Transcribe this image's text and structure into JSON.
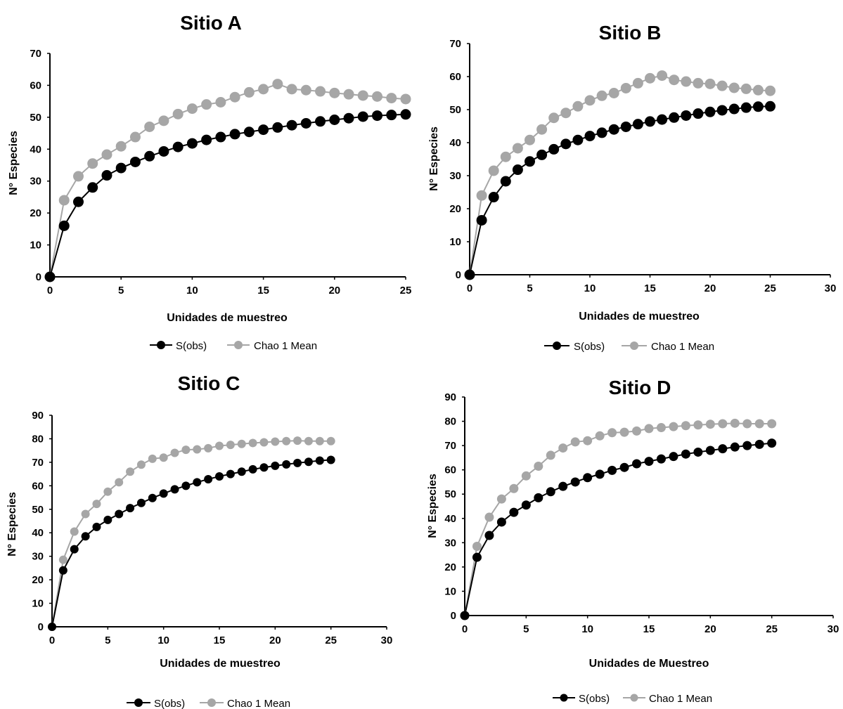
{
  "chart_data": [
    {
      "type": "line",
      "title": "Sitio A",
      "xlabel": "Unidades de muestreo",
      "ylabel": "N° Especies",
      "xlim": [
        0,
        25
      ],
      "ylim": [
        0,
        70
      ],
      "xticks": [
        0,
        5,
        10,
        15,
        20,
        25
      ],
      "yticks": [
        0,
        10,
        20,
        30,
        40,
        50,
        60,
        70
      ],
      "x": [
        0,
        1,
        2,
        3,
        4,
        5,
        6,
        7,
        8,
        9,
        10,
        11,
        12,
        13,
        14,
        15,
        16,
        17,
        18,
        19,
        20,
        21,
        22,
        23,
        24,
        25
      ],
      "series": [
        {
          "name": "S(obs)",
          "color": "#000000",
          "values": [
            0,
            16,
            23.5,
            28,
            31.8,
            34.1,
            36,
            37.8,
            39.3,
            40.7,
            41.8,
            42.9,
            43.8,
            44.7,
            45.4,
            46.1,
            46.8,
            47.5,
            48.1,
            48.7,
            49.2,
            49.7,
            50.2,
            50.5,
            50.7,
            50.9
          ]
        },
        {
          "name": "Chao 1 Mean",
          "color": "#a6a6a6",
          "values": [
            0,
            24,
            31.5,
            35.5,
            38.3,
            40.9,
            43.8,
            47,
            48.9,
            51,
            52.7,
            54,
            54.7,
            56.3,
            57.8,
            58.8,
            60.4,
            58.8,
            58.5,
            58.1,
            57.6,
            57.2,
            56.8,
            56.5,
            56,
            55.7
          ]
        }
      ],
      "legend_position": "bottom"
    },
    {
      "type": "line",
      "title": "Sitio B",
      "xlabel": "Unidades de muestreo",
      "ylabel": "N° Especies",
      "xlim": [
        0,
        30
      ],
      "ylim": [
        0,
        70
      ],
      "xticks": [
        0,
        5,
        10,
        15,
        20,
        25,
        30
      ],
      "yticks": [
        0,
        10,
        20,
        30,
        40,
        50,
        60,
        70
      ],
      "x": [
        0,
        1,
        2,
        3,
        4,
        5,
        6,
        7,
        8,
        9,
        10,
        11,
        12,
        13,
        14,
        15,
        16,
        17,
        18,
        19,
        20,
        21,
        22,
        23,
        24,
        25
      ],
      "series": [
        {
          "name": "S(obs)",
          "color": "#000000",
          "values": [
            0,
            16.5,
            23.5,
            28.3,
            31.8,
            34.3,
            36.3,
            38,
            39.6,
            40.8,
            42,
            43,
            44,
            44.8,
            45.6,
            46.4,
            47,
            47.6,
            48.2,
            48.8,
            49.3,
            49.8,
            50.2,
            50.6,
            50.9,
            51
          ]
        },
        {
          "name": "Chao 1 Mean",
          "color": "#a6a6a6",
          "values": [
            0,
            24,
            31.5,
            35.7,
            38.3,
            40.8,
            44,
            47.5,
            49,
            51,
            52.8,
            54.2,
            55,
            56.5,
            58,
            59.5,
            60.3,
            59,
            58.5,
            58,
            57.8,
            57.2,
            56.6,
            56.3,
            55.9,
            55.7
          ]
        }
      ],
      "legend_position": "bottom"
    },
    {
      "type": "line",
      "title": "Sitio C",
      "xlabel": "Unidades de muestreo",
      "ylabel": "N° Especies",
      "xlim": [
        0,
        30
      ],
      "ylim": [
        0,
        90
      ],
      "xticks": [
        0,
        5,
        10,
        15,
        20,
        25,
        30
      ],
      "yticks": [
        0,
        10,
        20,
        30,
        40,
        50,
        60,
        70,
        80,
        90
      ],
      "x": [
        0,
        1,
        2,
        3,
        4,
        5,
        6,
        7,
        8,
        9,
        10,
        11,
        12,
        13,
        14,
        15,
        16,
        17,
        18,
        19,
        20,
        21,
        22,
        23,
        24,
        25
      ],
      "series": [
        {
          "name": "S(obs)",
          "color": "#000000",
          "values": [
            0,
            24,
            33,
            38.5,
            42.5,
            45.5,
            48,
            50.5,
            52.7,
            54.8,
            56.7,
            58.5,
            60,
            61.5,
            62.8,
            64,
            65,
            66,
            67,
            67.8,
            68.5,
            69.1,
            69.7,
            70.2,
            70.7,
            71
          ]
        },
        {
          "name": "Chao 1 Mean",
          "color": "#a6a6a6",
          "values": [
            0,
            28.5,
            40.5,
            48,
            52.3,
            57.5,
            61.5,
            66,
            69,
            71.5,
            72,
            74,
            75.3,
            75.5,
            76,
            77,
            77.4,
            77.8,
            78.2,
            78.5,
            78.8,
            79,
            79.2,
            79,
            79,
            79
          ]
        }
      ],
      "legend_position": "bottom"
    },
    {
      "type": "line",
      "title": "Sitio D",
      "xlabel": "Unidades de Muestreo",
      "ylabel": "N° Especies",
      "xlim": [
        0,
        30
      ],
      "ylim": [
        0,
        90
      ],
      "xticks": [
        0,
        5,
        10,
        15,
        20,
        25,
        30
      ],
      "yticks": [
        0,
        10,
        20,
        30,
        40,
        50,
        60,
        70,
        80,
        90
      ],
      "x": [
        0,
        1,
        2,
        3,
        4,
        5,
        6,
        7,
        8,
        9,
        10,
        11,
        12,
        13,
        14,
        15,
        16,
        17,
        18,
        19,
        20,
        21,
        22,
        23,
        24,
        25
      ],
      "series": [
        {
          "name": "S(obs)",
          "color": "#000000",
          "values": [
            0,
            24,
            33,
            38.5,
            42.5,
            45.5,
            48.5,
            51,
            53.2,
            55,
            56.8,
            58.2,
            59.8,
            61,
            62.5,
            63.5,
            64.5,
            65.5,
            66.5,
            67.3,
            68,
            68.7,
            69.4,
            70,
            70.5,
            71
          ]
        },
        {
          "name": "Chao 1 Mean",
          "color": "#a6a6a6",
          "values": [
            0,
            28.5,
            40.5,
            48,
            52.3,
            57.5,
            61.5,
            66,
            69,
            71.5,
            72,
            74,
            75.3,
            75.5,
            76,
            77,
            77.4,
            77.8,
            78.2,
            78.5,
            78.8,
            79,
            79.2,
            79,
            79,
            79
          ]
        }
      ],
      "legend_position": "bottom"
    }
  ]
}
